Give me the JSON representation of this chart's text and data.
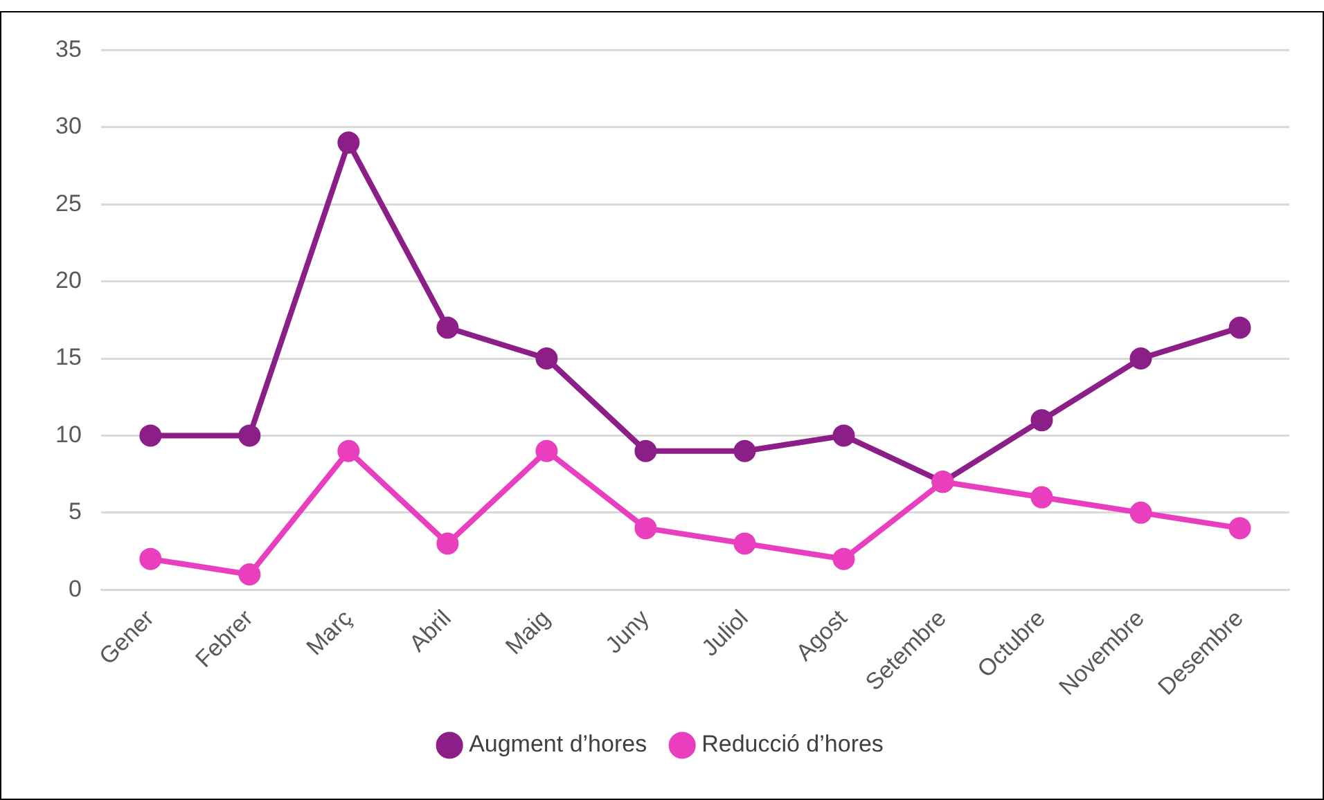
{
  "chart_data": {
    "type": "line",
    "categories": [
      "Gener",
      "Febrer",
      "Març",
      "Abril",
      "Maig",
      "Juny",
      "Juliol",
      "Agost",
      "Setembre",
      "Octubre",
      "Novembre",
      "Desembre"
    ],
    "series": [
      {
        "name": "Augment d’hores",
        "color": "#8b1f87",
        "values": [
          10,
          10,
          29,
          17,
          15,
          9,
          9,
          10,
          7,
          11,
          15,
          17
        ]
      },
      {
        "name": "Reducció d’hores",
        "color": "#e93fbf",
        "values": [
          2,
          1,
          9,
          3,
          9,
          4,
          3,
          2,
          7,
          6,
          5,
          4
        ]
      }
    ],
    "ylim": [
      0,
      35
    ],
    "yticks": [
      0,
      5,
      10,
      15,
      20,
      25,
      30,
      35
    ],
    "grid": "y",
    "legend": "bottom",
    "marker": "circle",
    "line_style": "solid"
  }
}
